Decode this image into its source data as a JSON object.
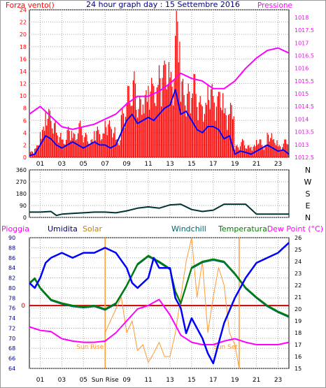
{
  "colors": {
    "wind": "#ff0000",
    "gust": "#ff0000",
    "wind_avg": "#0000ff",
    "pressure": "#ff00ff",
    "direction": "#003333",
    "rain": "#cc0000",
    "humidity": "#0000ff",
    "solar": "#ff9933",
    "windchill": "#006666",
    "temperature": "#008000",
    "dewpoint": "#ff00ff",
    "grid": "#aaaaaa",
    "frame": "#000000"
  },
  "chart_data": [
    {
      "type": "line",
      "title": "24 hour graph day : 15 Settembre 2016",
      "left_label": "Forza vento()",
      "right_label": "Pressione",
      "x_tick_labels": [
        "01",
        "03",
        "05",
        "07",
        "09",
        "11",
        "13",
        "15",
        "17",
        "19",
        "21",
        "23"
      ],
      "x_ticks_hours": [
        1,
        3,
        5,
        7,
        9,
        11,
        13,
        15,
        17,
        19,
        21,
        23
      ],
      "xlim": [
        0,
        24
      ],
      "ylim_left": [
        0,
        24
      ],
      "ylim_right": [
        1012.5,
        1018.3
      ],
      "y_left_ticks": [
        0,
        2,
        4,
        6,
        8,
        10,
        12,
        14,
        16,
        18,
        20,
        22,
        24
      ],
      "y_right_ticks": [
        1012.5,
        1013,
        1013.5,
        1014,
        1014.5,
        1015,
        1015.5,
        1016,
        1016.5,
        1017,
        1017.5,
        1018
      ],
      "series": [
        {
          "axis": "left",
          "x": [
            0,
            0.5,
            1,
            1.5,
            2,
            2.5,
            3,
            3.5,
            4,
            4.5,
            5,
            5.5,
            6,
            6.5,
            7,
            7.5,
            8,
            8.5,
            9,
            9.5,
            10,
            10.5,
            11,
            11.5,
            12,
            12.5,
            13,
            13.5,
            14,
            14.5,
            15,
            15.5,
            16,
            16.5,
            17,
            17.5,
            18,
            18.5,
            19,
            19.5,
            20,
            20.5,
            21,
            21.5,
            22,
            22.5,
            23,
            23.5,
            24
          ],
          "values": [
            1,
            2,
            5,
            8,
            6,
            4,
            3,
            5,
            4,
            6,
            4,
            3,
            5,
            4,
            6,
            5,
            3,
            8,
            12,
            14,
            10,
            11,
            13,
            12,
            15,
            16,
            14,
            24,
            13,
            12,
            14,
            10,
            9,
            12,
            10,
            11,
            8,
            9,
            2,
            3,
            2,
            2,
            3,
            2,
            4,
            3,
            2,
            3,
            1
          ]
        },
        {
          "axis": "left",
          "x": [
            0,
            0.5,
            1,
            1.5,
            2,
            2.5,
            3,
            3.5,
            4,
            4.5,
            5,
            5.5,
            6,
            6.5,
            7,
            7.5,
            8,
            8.5,
            9,
            9.5,
            10,
            10.5,
            11,
            11.5,
            12,
            12.5,
            13,
            13.5,
            14,
            14.5,
            15,
            15.5,
            16,
            16.5,
            17,
            17.5,
            18,
            18.5,
            19,
            19.5,
            20,
            20.5,
            21,
            21.5,
            22,
            22.5,
            23,
            23.5,
            24
          ],
          "values": [
            0.3,
            0.5,
            2,
            3.5,
            3,
            2,
            1.5,
            2,
            2.5,
            2,
            1.5,
            2,
            2.5,
            2,
            2,
            1.5,
            2,
            4,
            6,
            7,
            5.5,
            6,
            6.5,
            6,
            7,
            8,
            8.5,
            11,
            7,
            7.5,
            6,
            4.5,
            4,
            5,
            5,
            4.5,
            3,
            3.5,
            0.5,
            1,
            0.8,
            0.5,
            1,
            1.5,
            2,
            1.5,
            1,
            1.2,
            0.5
          ]
        },
        {
          "axis": "right",
          "x": [
            0,
            1,
            2,
            3,
            4,
            5,
            6,
            7,
            8,
            9,
            10,
            11,
            12,
            13,
            14,
            15,
            16,
            17,
            18,
            19,
            20,
            21,
            22,
            23,
            24
          ],
          "values": [
            1014.2,
            1014.5,
            1014.1,
            1013.7,
            1013.6,
            1013.7,
            1013.8,
            1014.0,
            1014.2,
            1014.6,
            1014.9,
            1014.9,
            1015.1,
            1015.4,
            1015.8,
            1015.6,
            1015.5,
            1015.2,
            1015.2,
            1015.5,
            1016.0,
            1016.4,
            1016.7,
            1016.8,
            1016.6
          ]
        }
      ]
    },
    {
      "type": "line",
      "y_left_ticks": [
        0,
        90,
        180,
        270,
        360
      ],
      "ylim": [
        0,
        360
      ],
      "right_labels": [
        "N",
        "W",
        "S",
        "E",
        "N"
      ],
      "x_ticks_hours": [
        1,
        3,
        5,
        7,
        9,
        11,
        13,
        15,
        17,
        19,
        21,
        23
      ],
      "series": [
        {
          "x": [
            0,
            1,
            2,
            2.5,
            3,
            4,
            5,
            6,
            7,
            8,
            9,
            10,
            11,
            12,
            13,
            14,
            15,
            16,
            17,
            18,
            19,
            20,
            21,
            22,
            23,
            24
          ],
          "values": [
            40,
            40,
            45,
            15,
            25,
            30,
            35,
            40,
            40,
            35,
            50,
            70,
            80,
            70,
            95,
            100,
            60,
            45,
            55,
            100,
            100,
            100,
            25,
            25,
            25,
            25
          ]
        }
      ]
    },
    {
      "type": "line",
      "top_labels": {
        "rain": "Pioggia",
        "humidity": "Umidita",
        "solar": "Solar",
        "windchill": "Windchill",
        "temperature": "Temperatura",
        "dewpoint": "Dew Point (°C)"
      },
      "sunrise_label": "Sun Rise",
      "sunset_label": "Sun Set",
      "sunrise_hour": 7.0,
      "sunset_hour": 19.4,
      "x_tick_labels": [
        "01",
        "03",
        "05",
        "Sun Rise",
        "09",
        "11",
        "13",
        "15",
        "17",
        "19",
        "21",
        "23"
      ],
      "x_ticks_hours": [
        1,
        3,
        5,
        7,
        9,
        11,
        13,
        15,
        17,
        19,
        21,
        23
      ],
      "ylim_left": [
        64,
        90
      ],
      "ylim_right": [
        15,
        26
      ],
      "y_left_ticks": [
        64,
        66,
        68,
        70,
        72,
        74,
        76,
        78,
        80,
        82,
        84,
        86,
        88,
        90
      ],
      "y_right_ticks": [
        15,
        16,
        17,
        18,
        19,
        20,
        21,
        22,
        23,
        24,
        25,
        26
      ],
      "rain_label": "0",
      "series": [
        {
          "name": "Umidita",
          "axis": "left",
          "x": [
            0,
            0.5,
            1,
            1.5,
            2,
            3,
            4,
            5,
            6,
            7,
            8,
            9,
            9.5,
            10,
            11,
            11.5,
            12,
            13,
            13.5,
            14,
            14.5,
            15,
            16,
            16.5,
            17,
            17.5,
            18,
            19,
            20,
            21,
            22,
            23,
            24
          ],
          "values": [
            81,
            80,
            82,
            85,
            86,
            87,
            86,
            87,
            87,
            88,
            87,
            84,
            81,
            80,
            82,
            86,
            84,
            84,
            78,
            76,
            71,
            74,
            70,
            67,
            65,
            69,
            73,
            78,
            82,
            85,
            86,
            87,
            89
          ]
        },
        {
          "name": "Temperatura",
          "axis": "right",
          "x": [
            0,
            0.5,
            1,
            2,
            3,
            4,
            5,
            6,
            7,
            8,
            9,
            10,
            11,
            12,
            13,
            13.5,
            14,
            15,
            16,
            17,
            18,
            19,
            20,
            21,
            22,
            23,
            24
          ],
          "values": [
            22.2,
            22.6,
            21.8,
            20.8,
            20.5,
            20.3,
            20.2,
            20.3,
            20.0,
            20.5,
            22.0,
            23.8,
            24.5,
            24.0,
            23.4,
            21.5,
            20.5,
            23.5,
            24.0,
            24.2,
            24.0,
            23.0,
            21.8,
            21.0,
            20.3,
            19.8,
            19.4
          ]
        },
        {
          "name": "Windchill",
          "axis": "right",
          "x": [
            0,
            0.5,
            1,
            2,
            3,
            4,
            5,
            6,
            7,
            8,
            9,
            10,
            11,
            12,
            13,
            13.5,
            14,
            15,
            16,
            17,
            18,
            19,
            20,
            21,
            22,
            23,
            24
          ],
          "values": [
            22.1,
            22.5,
            21.7,
            20.7,
            20.4,
            20.2,
            20.1,
            20.2,
            19.9,
            20.4,
            21.9,
            23.7,
            24.4,
            23.9,
            23.3,
            21.4,
            20.4,
            23.4,
            23.9,
            24.1,
            23.9,
            22.9,
            21.7,
            20.9,
            20.2,
            19.7,
            19.3
          ]
        },
        {
          "name": "Dew Point",
          "axis": "right",
          "x": [
            0,
            1,
            2,
            3,
            4,
            5,
            6,
            7,
            8,
            9,
            10,
            11,
            12,
            13,
            14,
            15,
            16,
            17,
            18,
            19,
            20,
            21,
            22,
            23,
            24
          ],
          "values": [
            18.5,
            18.2,
            18.1,
            17.5,
            17.3,
            17.2,
            17.2,
            17.3,
            18.0,
            19.0,
            20.0,
            20.3,
            20.8,
            19.5,
            17.8,
            17.2,
            17.0,
            17.0,
            17.3,
            17.5,
            17.2,
            17.0,
            17.0,
            17.0,
            17.2
          ]
        },
        {
          "name": "Solar",
          "axis": "right",
          "x": [
            7,
            7.5,
            8,
            8.5,
            9,
            9.5,
            10,
            10.5,
            11,
            11.5,
            12,
            12.5,
            13,
            13.5,
            14,
            14.5,
            15,
            15.5,
            16,
            16.5,
            17,
            17.5,
            18,
            18.5,
            19,
            19.4
          ],
          "values": [
            18,
            19,
            20,
            21,
            18,
            19,
            16.5,
            17,
            15.5,
            16.3,
            17.2,
            16,
            16,
            18,
            21,
            24,
            26,
            21,
            24,
            18,
            21,
            23.5,
            22,
            18,
            17,
            15
          ]
        },
        {
          "name": "Pioggia",
          "axis": "rain",
          "values": [
            0
          ]
        }
      ]
    }
  ]
}
